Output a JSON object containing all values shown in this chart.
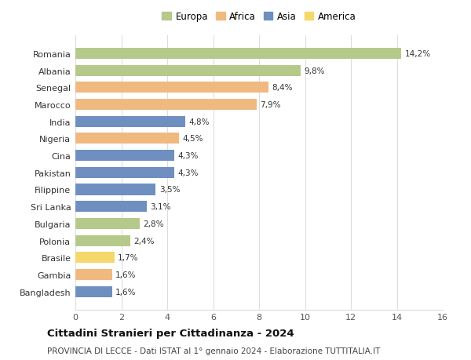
{
  "countries": [
    "Romania",
    "Albania",
    "Senegal",
    "Marocco",
    "India",
    "Nigeria",
    "Cina",
    "Pakistan",
    "Filippine",
    "Sri Lanka",
    "Bulgaria",
    "Polonia",
    "Brasile",
    "Gambia",
    "Bangladesh"
  ],
  "values": [
    14.2,
    9.8,
    8.4,
    7.9,
    4.8,
    4.5,
    4.3,
    4.3,
    3.5,
    3.1,
    2.8,
    2.4,
    1.7,
    1.6,
    1.6
  ],
  "labels": [
    "14,2%",
    "9,8%",
    "8,4%",
    "7,9%",
    "4,8%",
    "4,5%",
    "4,3%",
    "4,3%",
    "3,5%",
    "3,1%",
    "2,8%",
    "2,4%",
    "1,7%",
    "1,6%",
    "1,6%"
  ],
  "continents": [
    "Europa",
    "Europa",
    "Africa",
    "Africa",
    "Asia",
    "Africa",
    "Asia",
    "Asia",
    "Asia",
    "Asia",
    "Europa",
    "Europa",
    "America",
    "Africa",
    "Asia"
  ],
  "colors": {
    "Europa": "#b5c98a",
    "Africa": "#f0b980",
    "Asia": "#6e8fc0",
    "America": "#f5d86a"
  },
  "legend_order": [
    "Europa",
    "Africa",
    "Asia",
    "America"
  ],
  "legend_colors": [
    "#b5c98a",
    "#f0b980",
    "#6e8fc0",
    "#f5d86a"
  ],
  "xlim": [
    0,
    16
  ],
  "xticks": [
    0,
    2,
    4,
    6,
    8,
    10,
    12,
    14,
    16
  ],
  "title": "Cittadini Stranieri per Cittadinanza - 2024",
  "subtitle": "PROVINCIA DI LECCE - Dati ISTAT al 1° gennaio 2024 - Elaborazione TUTTITALIA.IT",
  "bg_color": "#ffffff",
  "bar_height": 0.65,
  "grid_color": "#dddddd",
  "label_fontsize": 7.5,
  "ytick_fontsize": 8,
  "xtick_fontsize": 8,
  "legend_fontsize": 8.5,
  "title_fontsize": 9.5,
  "subtitle_fontsize": 7.5
}
